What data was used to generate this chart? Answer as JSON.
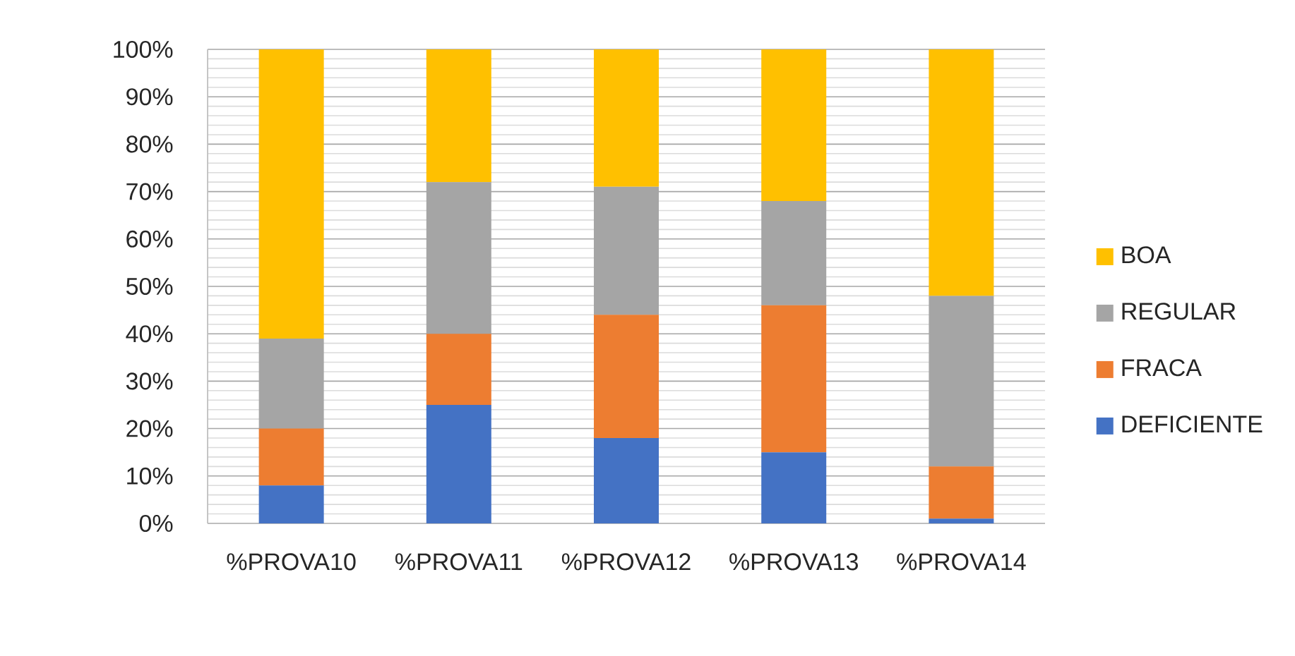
{
  "chart_data": {
    "type": "bar",
    "stacked": true,
    "categories": [
      "%PROVA10",
      "%PROVA11",
      "%PROVA12",
      "%PROVA13",
      "%PROVA14"
    ],
    "series": [
      {
        "name": "DEFICIENTE",
        "color": "#4472c4",
        "values": [
          8,
          25,
          18,
          15,
          1
        ]
      },
      {
        "name": "FRACA",
        "color": "#ed7d31",
        "values": [
          12,
          15,
          26,
          31,
          11
        ]
      },
      {
        "name": "REGULAR",
        "color": "#a5a5a5",
        "values": [
          19,
          32,
          27,
          22,
          36
        ]
      },
      {
        "name": "BOA",
        "color": "#ffc000",
        "values": [
          61,
          28,
          29,
          32,
          52
        ]
      }
    ],
    "ylim": [
      0,
      100
    ],
    "yticks": [
      {
        "value": 0,
        "label": "0%"
      },
      {
        "value": 10,
        "label": "10%"
      },
      {
        "value": 20,
        "label": "20%"
      },
      {
        "value": 30,
        "label": "30%"
      },
      {
        "value": 40,
        "label": "40%"
      },
      {
        "value": 50,
        "label": "50%"
      },
      {
        "value": 60,
        "label": "60%"
      },
      {
        "value": 70,
        "label": "70%"
      },
      {
        "value": 80,
        "label": "80%"
      },
      {
        "value": 90,
        "label": "90%"
      },
      {
        "value": 100,
        "label": "100%"
      }
    ],
    "grid": "y",
    "legend": "right"
  }
}
